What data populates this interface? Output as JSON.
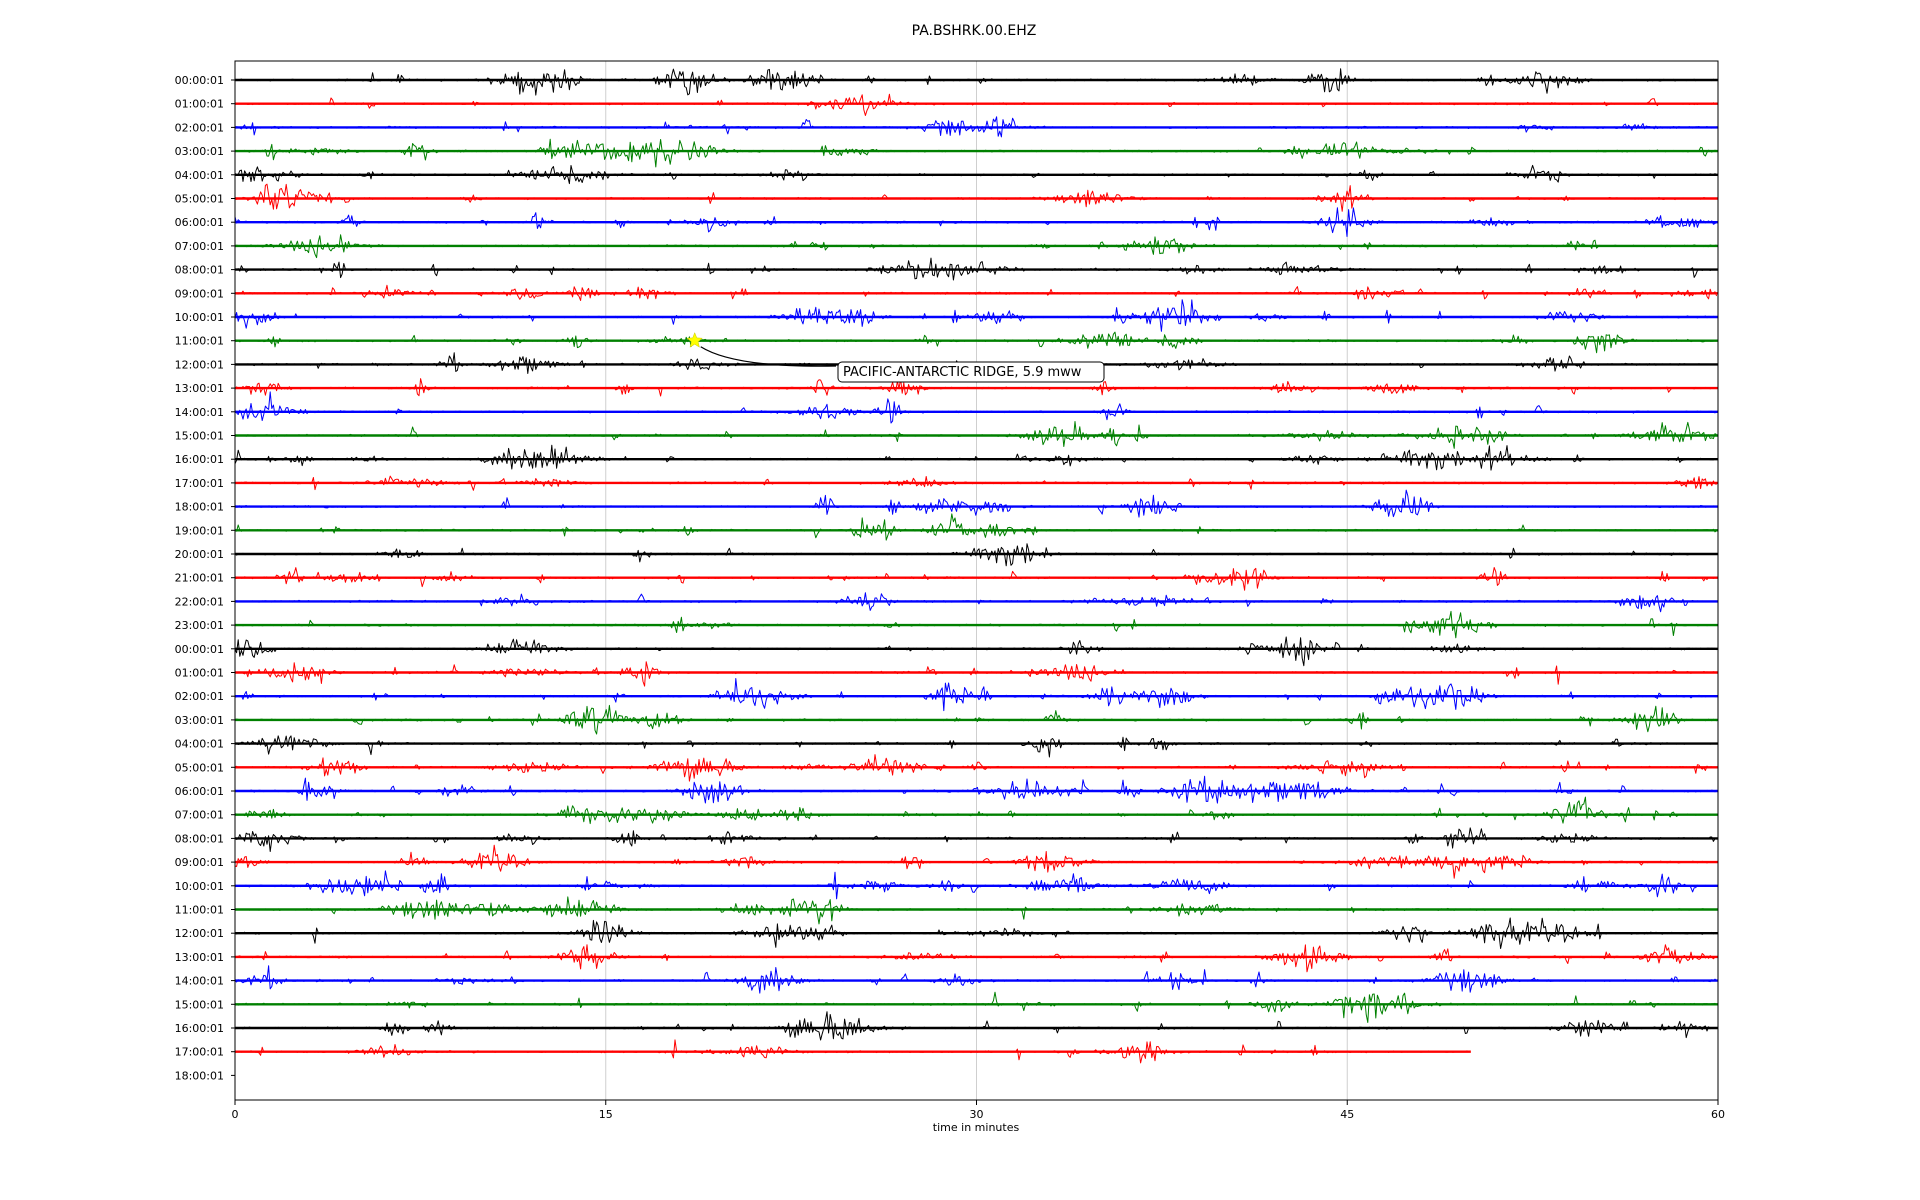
{
  "chart_data": {
    "type": "line",
    "title": "PA.BSHRK.00.EHZ",
    "xlabel": "time in minutes",
    "ylabel": "",
    "xlim": [
      0,
      60
    ],
    "x_ticks": [
      "0",
      "15",
      "30",
      "45",
      "60"
    ],
    "grid": "vertical lines at 15, 30, 45",
    "trace_colors": [
      "#000000",
      "#ff0000",
      "#0000ff",
      "#008000"
    ],
    "row_labels": [
      "00:00:01",
      "01:00:01",
      "02:00:01",
      "03:00:01",
      "04:00:01",
      "05:00:01",
      "06:00:01",
      "07:00:01",
      "08:00:01",
      "09:00:01",
      "10:00:01",
      "11:00:01",
      "12:00:01",
      "13:00:01",
      "14:00:01",
      "15:00:01",
      "16:00:01",
      "17:00:01",
      "18:00:01",
      "19:00:01",
      "20:00:01",
      "21:00:01",
      "22:00:01",
      "23:00:01",
      "00:00:01",
      "01:00:01",
      "02:00:01",
      "03:00:01",
      "04:00:01",
      "05:00:01",
      "06:00:01",
      "07:00:01",
      "08:00:01",
      "09:00:01",
      "10:00:01",
      "11:00:01",
      "12:00:01",
      "13:00:01",
      "14:00:01",
      "15:00:01",
      "16:00:01",
      "17:00:01",
      "18:00:01"
    ],
    "last_trace_end_minute": 50,
    "event": {
      "label": "PACIFIC-ANTARCTIC RIDGE, 5.9 mww",
      "row": 11,
      "minute": 18.6,
      "marker_color": "#ffff00"
    }
  }
}
